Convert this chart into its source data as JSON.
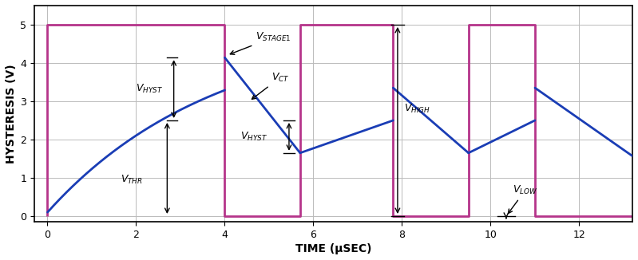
{
  "xlabel": "TIME (μSEC)",
  "ylabel": "HYSTERESIS (V)",
  "xlim": [
    -0.3,
    13.2
  ],
  "ylim": [
    -0.15,
    5.5
  ],
  "yticks": [
    0,
    1,
    2,
    3,
    4,
    5
  ],
  "xticks": [
    0,
    2,
    4,
    6,
    8,
    10,
    12
  ],
  "stage1_color": "#b5348a",
  "ct_color": "#1a3db5",
  "tau": 3.8,
  "V_init": 0.1,
  "Vcc": 5.0,
  "V_THR": 2.5,
  "V_HYST": 0.85,
  "t_switch1": 4.0,
  "t_switch2": 5.7,
  "t_switch3": 7.8,
  "t_switch4": 9.5,
  "t_switch5": 11.0,
  "grid_color": "#bbbbbb",
  "linewidth_main": 2.0,
  "fontsize_label": 10,
  "fontsize_annot": 9
}
